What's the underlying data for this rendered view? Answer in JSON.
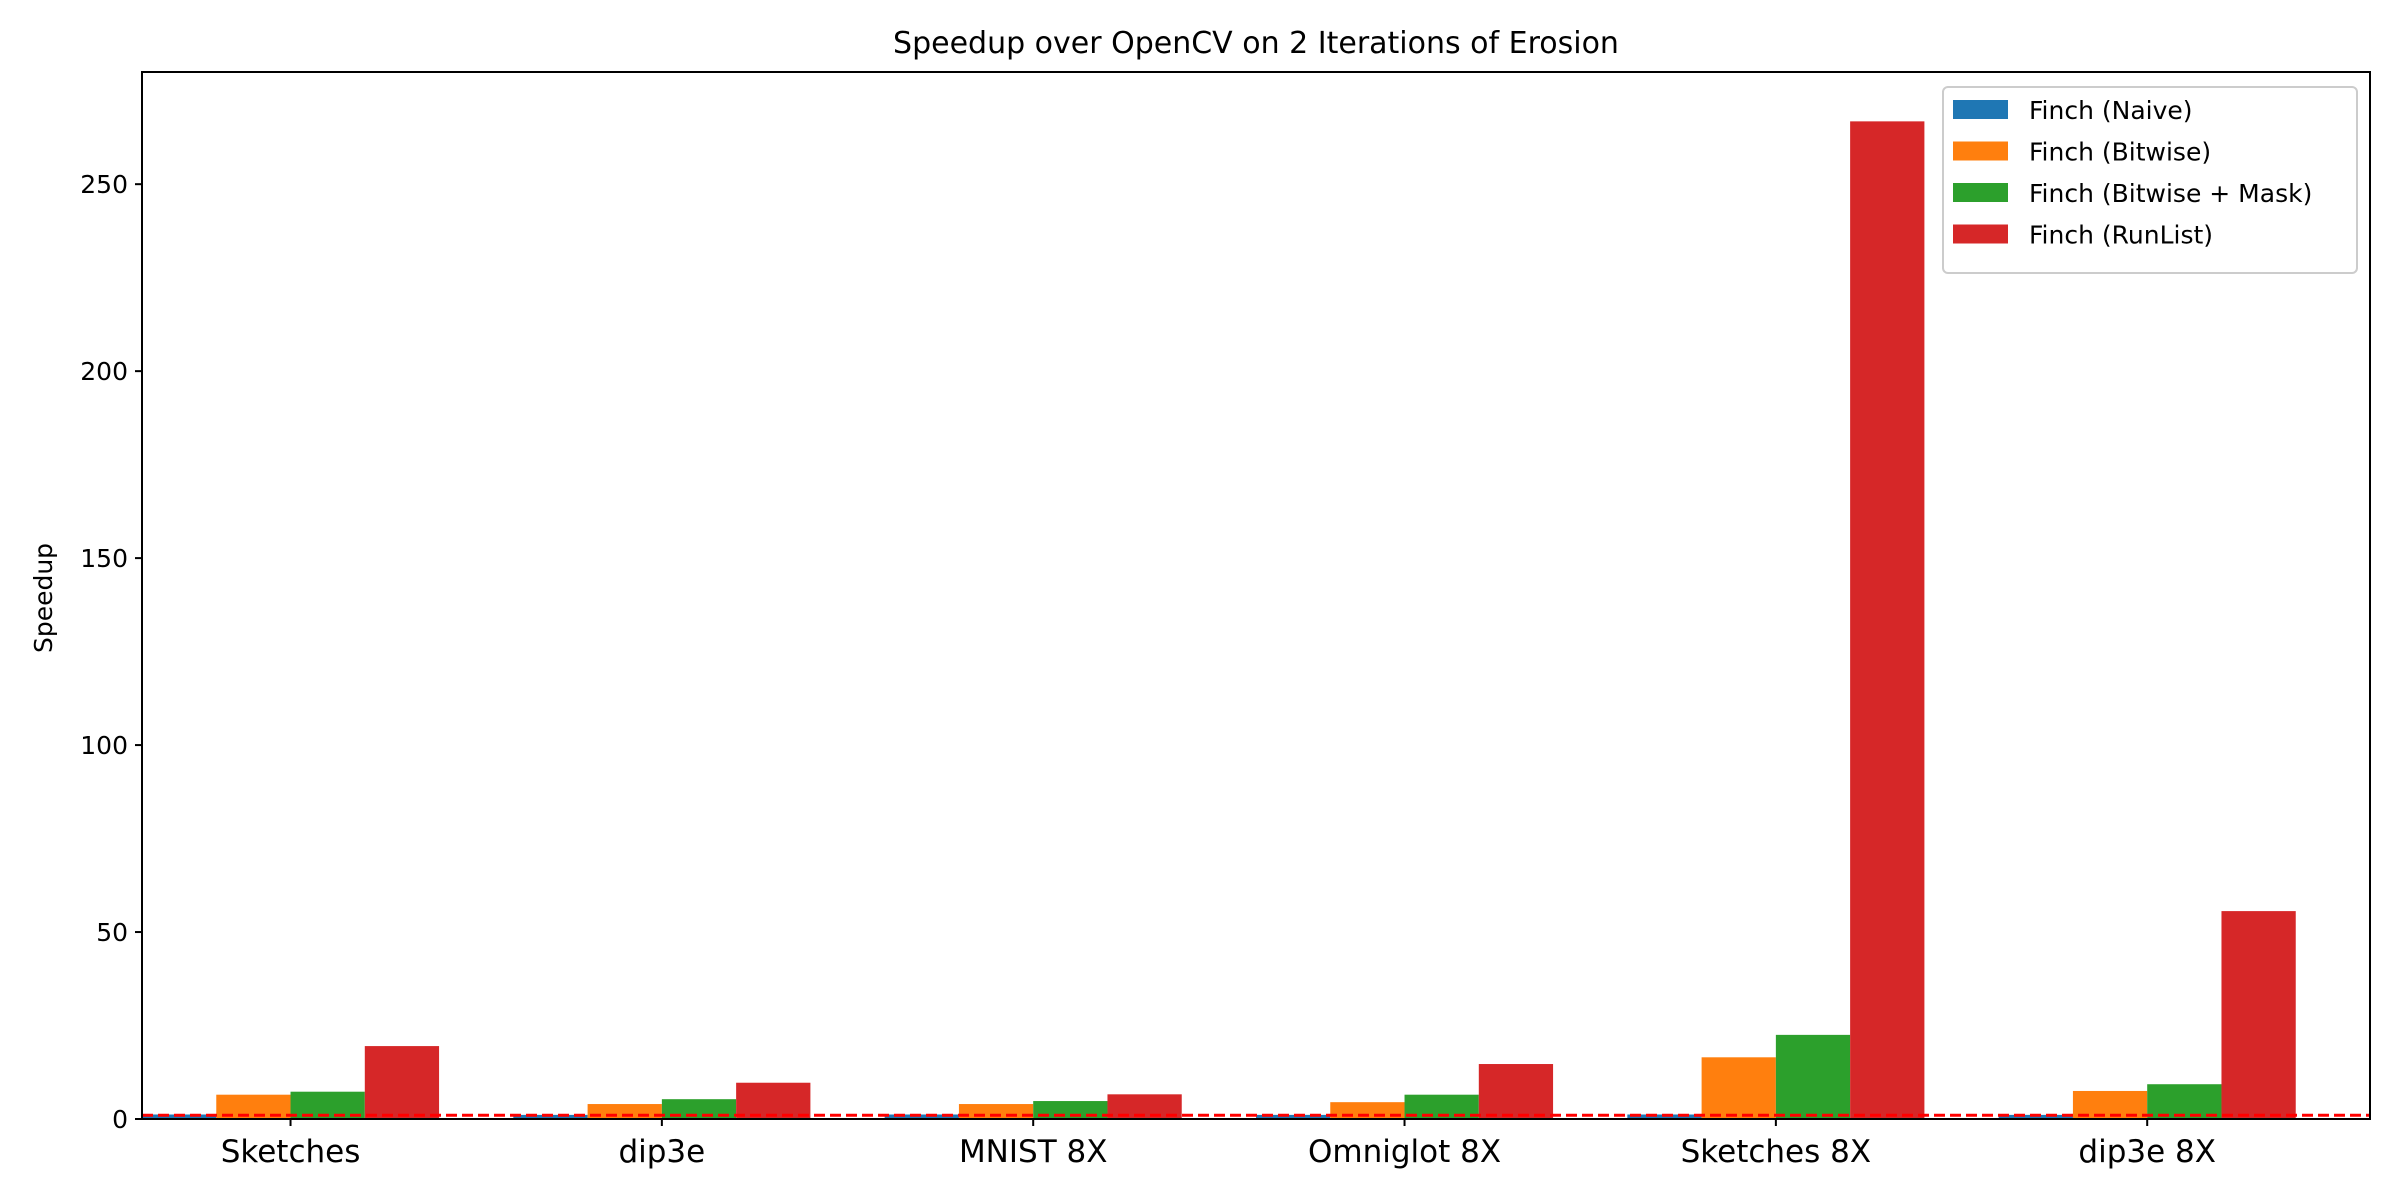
{
  "chart_data": {
    "type": "bar",
    "title": "Speedup over OpenCV on 2 Iterations of Erosion",
    "xlabel": "",
    "ylabel": "Speedup",
    "ylim": [
      0,
      280
    ],
    "yticks": [
      0,
      50,
      100,
      150,
      200,
      250
    ],
    "grid": false,
    "legend_position": "top-right",
    "baseline": {
      "value": 1,
      "color": "#ff0000",
      "style": "dashed"
    },
    "categories": [
      "Sketches",
      "dip3e",
      "MNIST 8X",
      "Omniglot 8X",
      "Sketches 8X",
      "dip3e 8X"
    ],
    "series": [
      {
        "name": "Finch (Naive)",
        "color": "#1f77b4",
        "values": [
          1.2,
          1.1,
          1.2,
          1.1,
          1.2,
          1.1
        ]
      },
      {
        "name": "Finch (Bitwise)",
        "color": "#ff7f0e",
        "values": [
          6.5,
          4.0,
          4.0,
          4.5,
          16.5,
          7.5
        ]
      },
      {
        "name": "Finch (Bitwise + Mask)",
        "color": "#2ca02c",
        "values": [
          7.3,
          5.3,
          4.8,
          6.5,
          22.5,
          9.3
        ]
      },
      {
        "name": "Finch (RunList)",
        "color": "#d62728",
        "values": [
          19.5,
          9.7,
          6.6,
          14.7,
          266.8,
          55.6
        ]
      }
    ]
  }
}
